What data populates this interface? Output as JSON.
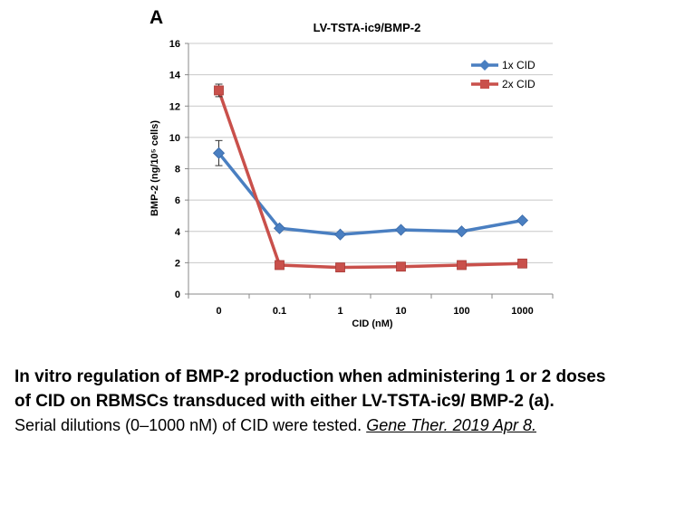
{
  "panel_label": "A",
  "chart_data": {
    "type": "line",
    "title": "LV-TSTA-ic9/BMP-2",
    "xlabel": "CID (nM)",
    "ylabel": "BMP-2 (ng/10⁵ cells)",
    "categories": [
      "0",
      "0.1",
      "1",
      "10",
      "100",
      "1000"
    ],
    "ylim": [
      0,
      16
    ],
    "yticks": [
      0,
      2,
      4,
      6,
      8,
      10,
      12,
      14,
      16
    ],
    "grid": true,
    "legend_position": "top-right",
    "series": [
      {
        "name": "1x CID",
        "values": [
          9.0,
          4.2,
          3.8,
          4.1,
          4.0,
          4.7
        ],
        "error": [
          0.8,
          0,
          0,
          0,
          0,
          0
        ],
        "color": "#4a7fc1",
        "marker": "diamond"
      },
      {
        "name": "2x CID",
        "values": [
          13.0,
          1.85,
          1.7,
          1.75,
          1.85,
          1.95
        ],
        "error": [
          0.4,
          0,
          0,
          0,
          0,
          0
        ],
        "color": "#c9504b",
        "marker": "square"
      }
    ]
  },
  "caption": {
    "line1": "In vitro regulation of BMP-2 production when administering 1 or 2 doses",
    "line2": "of CID on RBMSCs transduced with either LV-TSTA-ic9/ BMP-2 (a).",
    "line3_text": "Serial dilutions (0–1000 nM) of CID were tested. ",
    "line3_citation": "Gene Ther. 2019 Apr 8. "
  }
}
